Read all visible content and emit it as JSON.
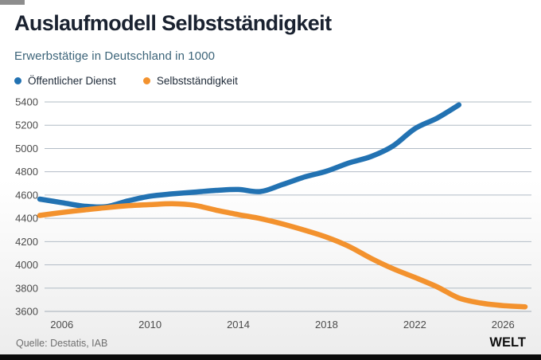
{
  "header": {
    "title": "Auslaufmodell Selbstständigkeit",
    "subtitle": "Erwerbstätige in Deutschland in 1000"
  },
  "legend": {
    "items": [
      {
        "label": "Öffentlicher Dienst",
        "color": "#2272b2"
      },
      {
        "label": "Selbstständigkeit",
        "color": "#f3922e"
      }
    ]
  },
  "chart_data": {
    "type": "line",
    "title": "Auslaufmodell Selbstständigkeit",
    "subtitle": "Erwerbstätige in Deutschland in 1000",
    "xlim": [
      2005,
      2027
    ],
    "ylim": [
      3600,
      5400
    ],
    "yticks": [
      3600,
      3800,
      4000,
      4200,
      4400,
      4600,
      4800,
      5000,
      5200,
      5400
    ],
    "xticks": [
      2006,
      2010,
      2014,
      2018,
      2022,
      2026
    ],
    "grid": true,
    "legend_position": "top-left",
    "grid_color": "#b2bcc6",
    "baseline_color": "#a3adb6",
    "tick_label_color": "#4b4b4b",
    "series": [
      {
        "name": "Öffentlicher Dienst",
        "color": "#2272b2",
        "x": [
          2005,
          2006,
          2007,
          2008,
          2009,
          2010,
          2011,
          2012,
          2013,
          2014,
          2015,
          2016,
          2017,
          2018,
          2019,
          2020,
          2021,
          2022,
          2023,
          2024
        ],
        "values": [
          4565,
          4535,
          4505,
          4500,
          4550,
          4590,
          4610,
          4625,
          4640,
          4648,
          4630,
          4690,
          4755,
          4805,
          4875,
          4930,
          5020,
          5170,
          5260,
          5375
        ]
      },
      {
        "name": "Selbstständigkeit",
        "color": "#f3922e",
        "x": [
          2005,
          2006,
          2007,
          2008,
          2009,
          2010,
          2011,
          2012,
          2013,
          2014,
          2015,
          2016,
          2017,
          2018,
          2019,
          2020,
          2021,
          2022,
          2023,
          2024,
          2025,
          2026,
          2027
        ],
        "values": [
          4425,
          4450,
          4472,
          4492,
          4508,
          4518,
          4525,
          4512,
          4470,
          4432,
          4398,
          4352,
          4298,
          4238,
          4160,
          4058,
          3968,
          3892,
          3812,
          3715,
          3672,
          3650,
          3640
        ]
      }
    ]
  },
  "footer": {
    "source": "Quelle: Destatis, IAB",
    "brand": "WELT"
  }
}
